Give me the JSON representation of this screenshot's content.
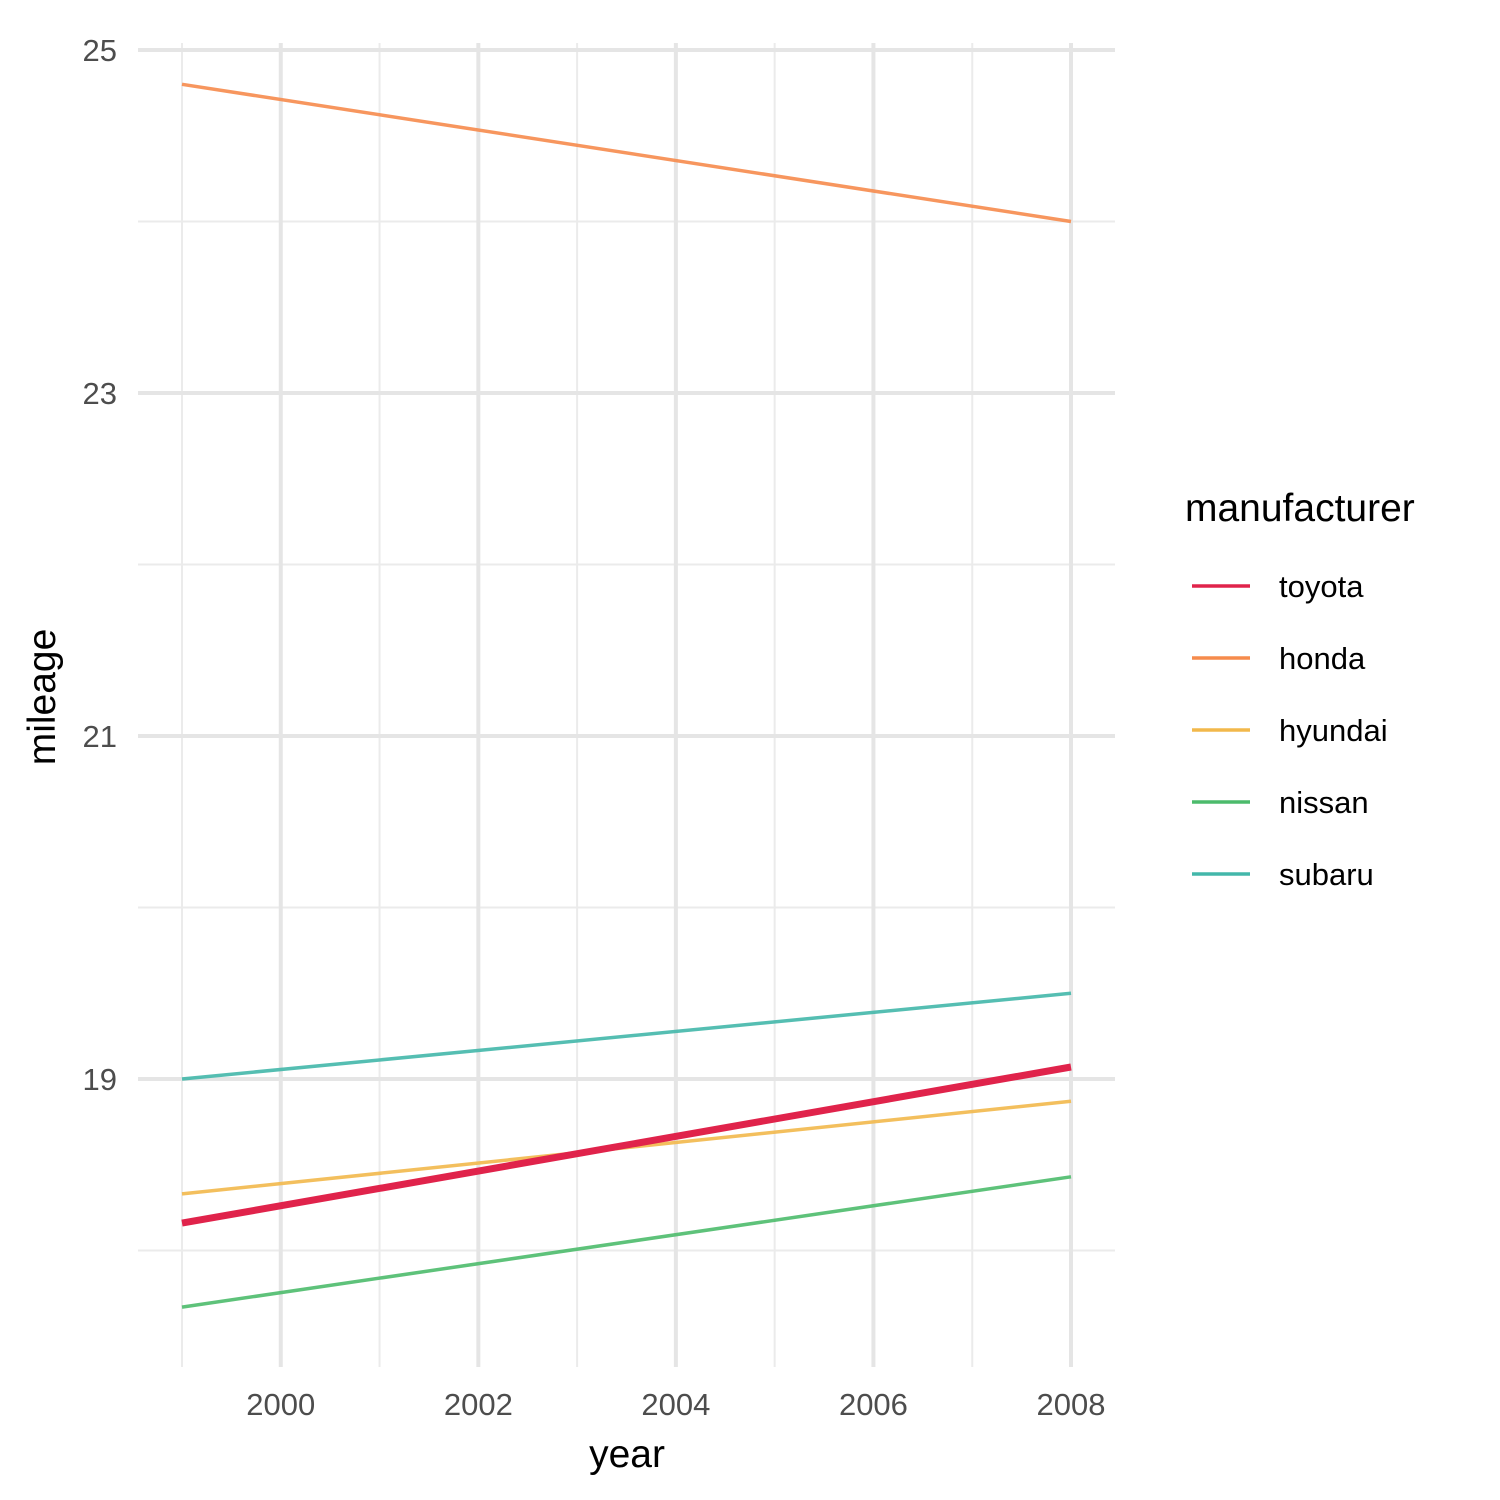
{
  "chart_data": {
    "type": "line",
    "xlabel": "year",
    "ylabel": "mileage",
    "xlim": [
      1998.5,
      2008.5
    ],
    "ylim": [
      17.5,
      25.05
    ],
    "x_ticks_major": [
      2000,
      2002,
      2004,
      2006,
      2008
    ],
    "x_ticks_minor": [
      1999,
      2001,
      2003,
      2005,
      2007
    ],
    "y_ticks_major": [
      19,
      21,
      23,
      25
    ],
    "y_ticks_minor": [
      18,
      20,
      22,
      24
    ],
    "x_tick_labels": [
      "2000",
      "2002",
      "2004",
      "2006",
      "2008"
    ],
    "y_tick_labels": [
      "19",
      "21",
      "23",
      "25"
    ],
    "grid": true,
    "legend": {
      "title": "manufacturer",
      "position": "right"
    },
    "series": [
      {
        "name": "toyota",
        "color": "#e0234b",
        "emphasis": true,
        "x": [
          1999,
          2008
        ],
        "y": [
          18.16,
          19.07
        ]
      },
      {
        "name": "honda",
        "color": "#f68b4c",
        "emphasis": false,
        "x": [
          1999,
          2008
        ],
        "y": [
          24.8,
          24.0
        ]
      },
      {
        "name": "hyundai",
        "color": "#f2b84b",
        "emphasis": false,
        "x": [
          1999,
          2008
        ],
        "y": [
          18.33,
          18.87
        ]
      },
      {
        "name": "nissan",
        "color": "#4cbb6c",
        "emphasis": false,
        "x": [
          1999,
          2008
        ],
        "y": [
          17.67,
          18.43
        ]
      },
      {
        "name": "subaru",
        "color": "#43b7aa",
        "emphasis": false,
        "x": [
          1999,
          2008
        ],
        "y": [
          19.0,
          19.5
        ]
      }
    ]
  }
}
